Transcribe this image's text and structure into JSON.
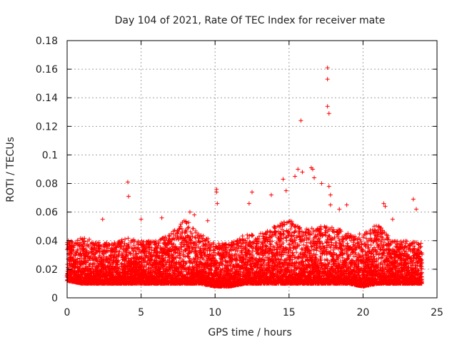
{
  "chart_data": {
    "type": "scatter",
    "title": "Day 104 of 2021, Rate Of TEC Index for receiver mate",
    "xlabel": "GPS time / hours",
    "ylabel": "ROTI / TECUs",
    "xlim": [
      0,
      25
    ],
    "ylim": [
      0,
      0.18
    ],
    "xticks": [
      0,
      5,
      10,
      15,
      20,
      25
    ],
    "yticks": [
      0,
      0.02,
      0.04,
      0.06,
      0.08,
      0.1,
      0.12,
      0.14,
      0.16,
      0.18
    ],
    "xtick_labels": [
      "0",
      "5",
      "10",
      "15",
      "20",
      "25"
    ],
    "ytick_labels": [
      "0",
      "0.02",
      "0.04",
      "0.06",
      "0.08",
      "0.1",
      "0.12",
      "0.14",
      "0.16",
      "0.18"
    ],
    "grid": true,
    "marker": "+",
    "marker_color": "#ff0000",
    "x_end": 24,
    "note": "dense cloud of ~5 min ROTI samples; baseline envelope listed per hour, notable outliers listed individually",
    "baseline_envelope": {
      "hours": [
        0,
        1,
        2,
        3,
        4,
        5,
        6,
        7,
        8,
        9,
        10,
        11,
        12,
        13,
        14,
        15,
        16,
        17,
        18,
        19,
        20,
        21,
        22,
        23,
        24
      ],
      "low": [
        0.012,
        0.01,
        0.01,
        0.01,
        0.01,
        0.01,
        0.01,
        0.01,
        0.01,
        0.01,
        0.008,
        0.008,
        0.01,
        0.01,
        0.01,
        0.01,
        0.01,
        0.01,
        0.01,
        0.01,
        0.008,
        0.01,
        0.01,
        0.01,
        0.01
      ],
      "high": [
        0.04,
        0.042,
        0.04,
        0.038,
        0.042,
        0.04,
        0.04,
        0.045,
        0.055,
        0.045,
        0.038,
        0.038,
        0.045,
        0.045,
        0.05,
        0.055,
        0.048,
        0.05,
        0.05,
        0.045,
        0.045,
        0.052,
        0.04,
        0.04,
        0.038
      ]
    },
    "outliers": {
      "x": [
        4.1,
        4.15,
        2.4,
        5.0,
        6.4,
        8.3,
        8.6,
        10.1,
        10.1,
        10.15,
        12.5,
        12.3,
        13.8,
        14.6,
        14.8,
        15.4,
        15.6,
        15.8,
        15.9,
        16.5,
        16.6,
        16.7,
        17.2,
        17.6,
        17.6,
        17.6,
        17.7,
        17.7,
        17.8,
        17.8,
        18.4,
        18.9,
        21.4,
        21.5,
        22.0,
        23.4,
        23.6,
        9.5
      ],
      "y": [
        0.081,
        0.071,
        0.055,
        0.055,
        0.056,
        0.06,
        0.058,
        0.076,
        0.074,
        0.066,
        0.074,
        0.066,
        0.072,
        0.083,
        0.075,
        0.085,
        0.09,
        0.124,
        0.088,
        0.091,
        0.09,
        0.084,
        0.08,
        0.161,
        0.153,
        0.134,
        0.129,
        0.078,
        0.072,
        0.065,
        0.062,
        0.065,
        0.066,
        0.064,
        0.055,
        0.069,
        0.062,
        0.054
      ]
    }
  }
}
